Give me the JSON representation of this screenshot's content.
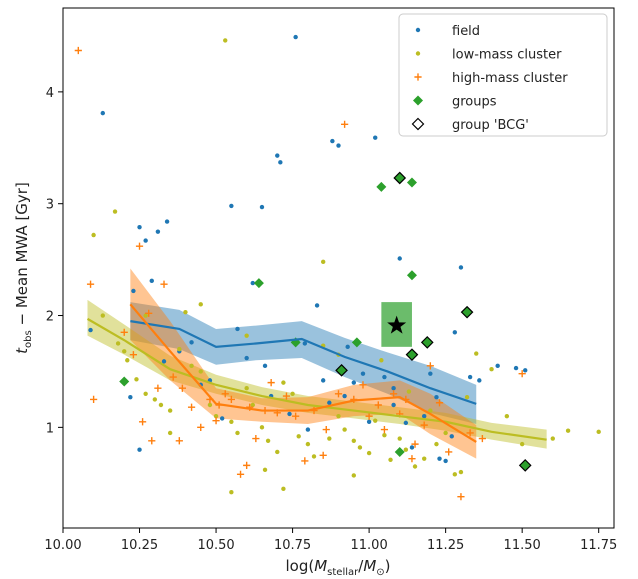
{
  "chart_data": {
    "type": "scatter",
    "xlabel": "log(M_stellar/M_⊙)",
    "ylabel": "t_obs − Mean MWA [Gyr]",
    "xlim": [
      10.0,
      11.8
    ],
    "ylim": [
      0.1,
      4.75
    ],
    "x_ticks": [
      "10.00",
      "10.25",
      "10.50",
      "10.75",
      "11.00",
      "11.25",
      "11.50",
      "11.75"
    ],
    "x_tick_values": [
      10.0,
      10.25,
      10.5,
      10.75,
      11.0,
      11.25,
      11.5,
      11.75
    ],
    "y_ticks": [
      "1",
      "2",
      "3",
      "4"
    ],
    "y_tick_values": [
      1,
      2,
      3,
      4
    ],
    "grid": false,
    "legend_position": "top-right",
    "legend": [
      {
        "label": "field",
        "marker": "dot",
        "color": "#1f77b4"
      },
      {
        "label": "low-mass cluster",
        "marker": "dot",
        "color": "#bcbd22"
      },
      {
        "label": "high-mass cluster",
        "marker": "plus",
        "color": "#ff7f0e"
      },
      {
        "label": "groups",
        "marker": "diamond",
        "color": "#2ca02c"
      },
      {
        "label": "group 'BCG'",
        "marker": "diamond-open",
        "color": "#000000"
      }
    ],
    "series": [
      {
        "name": "field",
        "color": "#1f77b4",
        "marker": "dot",
        "points": [
          [
            10.09,
            1.87
          ],
          [
            10.13,
            3.81
          ],
          [
            10.23,
            2.22
          ],
          [
            10.25,
            2.79
          ],
          [
            10.27,
            2.67
          ],
          [
            10.29,
            2.31
          ],
          [
            10.31,
            2.75
          ],
          [
            10.34,
            2.84
          ],
          [
            10.22,
            1.27
          ],
          [
            10.25,
            0.8
          ],
          [
            10.33,
            1.59
          ],
          [
            10.45,
            1.38
          ],
          [
            10.48,
            1.42
          ],
          [
            10.52,
            1.08
          ],
          [
            10.55,
            2.98
          ],
          [
            10.65,
            2.97
          ],
          [
            10.62,
            2.29
          ],
          [
            10.7,
            3.43
          ],
          [
            10.71,
            3.37
          ],
          [
            10.76,
            4.49
          ],
          [
            10.79,
            1.75
          ],
          [
            10.83,
            2.09
          ],
          [
            10.85,
            1.42
          ],
          [
            10.88,
            3.56
          ],
          [
            10.9,
            3.52
          ],
          [
            10.93,
            1.72
          ],
          [
            10.95,
            1.4
          ],
          [
            10.98,
            1.48
          ],
          [
            11.02,
            3.59
          ],
          [
            11.05,
            1.45
          ],
          [
            11.08,
            1.35
          ],
          [
            11.1,
            2.51
          ],
          [
            11.12,
            1.04
          ],
          [
            11.15,
            1.65
          ],
          [
            11.18,
            1.1
          ],
          [
            11.2,
            1.48
          ],
          [
            11.23,
            0.72
          ],
          [
            11.25,
            0.7
          ],
          [
            11.28,
            1.85
          ],
          [
            11.3,
            2.43
          ],
          [
            11.33,
            1.45
          ],
          [
            11.36,
            1.42
          ],
          [
            11.42,
            1.55
          ],
          [
            11.48,
            1.53
          ],
          [
            11.51,
            1.51
          ],
          [
            10.6,
            1.62
          ],
          [
            10.68,
            1.28
          ],
          [
            10.74,
            1.12
          ],
          [
            10.8,
            0.98
          ],
          [
            10.87,
            1.22
          ],
          [
            11.0,
            1.05
          ],
          [
            11.08,
            1.2
          ],
          [
            11.14,
            0.82
          ],
          [
            11.22,
            1.27
          ],
          [
            10.42,
            1.76
          ],
          [
            10.38,
            1.68
          ],
          [
            10.57,
            1.88
          ],
          [
            10.66,
            1.55
          ],
          [
            10.92,
            1.28
          ],
          [
            11.27,
            0.92
          ]
        ]
      },
      {
        "name": "low-mass cluster",
        "color": "#bcbd22",
        "marker": "dot",
        "points": [
          [
            10.1,
            2.72
          ],
          [
            10.17,
            2.93
          ],
          [
            10.13,
            2.0
          ],
          [
            10.18,
            1.75
          ],
          [
            10.2,
            1.68
          ],
          [
            10.21,
            1.6
          ],
          [
            10.24,
            1.43
          ],
          [
            10.27,
            1.3
          ],
          [
            10.3,
            1.25
          ],
          [
            10.32,
            1.2
          ],
          [
            10.35,
            1.15
          ],
          [
            10.38,
            1.7
          ],
          [
            10.4,
            2.03
          ],
          [
            10.42,
            1.55
          ],
          [
            10.45,
            1.5
          ],
          [
            10.48,
            1.2
          ],
          [
            10.5,
            1.1
          ],
          [
            10.53,
            4.46
          ],
          [
            10.55,
            1.05
          ],
          [
            10.57,
            0.95
          ],
          [
            10.6,
            1.35
          ],
          [
            10.62,
            1.2
          ],
          [
            10.65,
            1.0
          ],
          [
            10.67,
            0.88
          ],
          [
            10.7,
            0.78
          ],
          [
            10.72,
            1.4
          ],
          [
            10.75,
            1.3
          ],
          [
            10.77,
            0.92
          ],
          [
            10.8,
            0.85
          ],
          [
            10.82,
            0.74
          ],
          [
            10.85,
            2.48
          ],
          [
            10.87,
            0.9
          ],
          [
            10.9,
            1.1
          ],
          [
            10.92,
            0.98
          ],
          [
            10.95,
            0.88
          ],
          [
            10.97,
            0.82
          ],
          [
            11.0,
            0.77
          ],
          [
            11.02,
            1.06
          ],
          [
            11.05,
            0.93
          ],
          [
            11.07,
            0.71
          ],
          [
            11.1,
            0.9
          ],
          [
            11.12,
            0.8
          ],
          [
            11.15,
            0.65
          ],
          [
            11.18,
            0.72
          ],
          [
            11.2,
            1.15
          ],
          [
            11.22,
            0.85
          ],
          [
            11.25,
            0.95
          ],
          [
            11.28,
            0.58
          ],
          [
            11.3,
            0.6
          ],
          [
            11.35,
            1.66
          ],
          [
            11.4,
            1.52
          ],
          [
            11.45,
            1.1
          ],
          [
            11.5,
            0.85
          ],
          [
            11.6,
            0.9
          ],
          [
            11.65,
            0.97
          ],
          [
            11.75,
            0.96
          ],
          [
            10.55,
            0.42
          ],
          [
            10.72,
            0.45
          ],
          [
            10.45,
            2.1
          ],
          [
            10.6,
            1.82
          ],
          [
            10.85,
            1.73
          ],
          [
            11.04,
            1.6
          ],
          [
            11.32,
            1.27
          ],
          [
            10.35,
            0.95
          ],
          [
            10.27,
            2.0
          ],
          [
            10.9,
            1.65
          ],
          [
            11.13,
            1.32
          ],
          [
            10.66,
            0.62
          ],
          [
            10.95,
            0.57
          ]
        ]
      },
      {
        "name": "high-mass cluster",
        "color": "#ff7f0e",
        "marker": "plus",
        "points": [
          [
            10.05,
            4.37
          ],
          [
            10.1,
            1.25
          ],
          [
            10.09,
            2.28
          ],
          [
            10.25,
            2.62
          ],
          [
            10.28,
            2.02
          ],
          [
            10.2,
            1.85
          ],
          [
            10.23,
            1.65
          ],
          [
            10.26,
            1.05
          ],
          [
            10.29,
            0.88
          ],
          [
            10.31,
            1.35
          ],
          [
            10.33,
            2.28
          ],
          [
            10.36,
            1.45
          ],
          [
            10.39,
            1.35
          ],
          [
            10.42,
            1.18
          ],
          [
            10.45,
            1.0
          ],
          [
            10.48,
            1.25
          ],
          [
            10.51,
            1.2
          ],
          [
            10.53,
            1.3
          ],
          [
            10.55,
            1.25
          ],
          [
            10.58,
            0.58
          ],
          [
            10.61,
            1.18
          ],
          [
            10.63,
            0.9
          ],
          [
            10.66,
            1.15
          ],
          [
            10.7,
            1.13
          ],
          [
            10.73,
            1.28
          ],
          [
            10.76,
            1.1
          ],
          [
            10.79,
            0.7
          ],
          [
            10.82,
            1.15
          ],
          [
            10.86,
            0.98
          ],
          [
            10.9,
            1.3
          ],
          [
            10.92,
            3.71
          ],
          [
            10.95,
            1.25
          ],
          [
            10.98,
            1.38
          ],
          [
            11.0,
            1.1
          ],
          [
            11.03,
            1.2
          ],
          [
            11.05,
            0.98
          ],
          [
            11.08,
            1.3
          ],
          [
            11.1,
            1.12
          ],
          [
            11.12,
            1.25
          ],
          [
            11.15,
            0.85
          ],
          [
            11.18,
            1.02
          ],
          [
            11.2,
            1.55
          ],
          [
            11.23,
            1.22
          ],
          [
            11.26,
            0.78
          ],
          [
            11.3,
            0.38
          ],
          [
            11.33,
            0.95
          ],
          [
            11.37,
            0.9
          ],
          [
            11.5,
            1.48
          ],
          [
            10.68,
            1.4
          ],
          [
            10.6,
            0.66
          ],
          [
            10.85,
            0.75
          ],
          [
            11.14,
            0.72
          ],
          [
            10.38,
            0.88
          ],
          [
            10.5,
            1.06
          ]
        ]
      },
      {
        "name": "groups",
        "color": "#2ca02c",
        "marker": "diamond",
        "points": [
          [
            10.2,
            1.41
          ],
          [
            10.64,
            2.29
          ],
          [
            10.76,
            1.76
          ],
          [
            10.96,
            1.76
          ],
          [
            11.04,
            3.15
          ],
          [
            11.14,
            3.19
          ],
          [
            11.14,
            2.36
          ],
          [
            11.1,
            0.78
          ]
        ]
      },
      {
        "name": "group 'BCG'",
        "color": "#2ca02c",
        "marker": "diamond-open",
        "points": [
          [
            10.91,
            1.51
          ],
          [
            11.1,
            3.23
          ],
          [
            11.14,
            1.65
          ],
          [
            11.19,
            1.76
          ],
          [
            11.32,
            2.03
          ],
          [
            11.51,
            0.66
          ]
        ]
      }
    ],
    "trends": [
      {
        "name": "field",
        "color": "#1f77b4",
        "x": [
          10.22,
          10.38,
          10.5,
          10.63,
          10.78,
          10.92,
          11.06,
          11.2,
          11.35
        ],
        "y": [
          1.95,
          1.88,
          1.72,
          1.75,
          1.79,
          1.63,
          1.5,
          1.35,
          1.21
        ],
        "y_low": [
          1.78,
          1.7,
          1.56,
          1.6,
          1.62,
          1.45,
          1.3,
          1.13,
          1.03
        ],
        "y_high": [
          2.12,
          2.05,
          1.88,
          1.91,
          1.95,
          1.8,
          1.67,
          1.55,
          1.38
        ]
      },
      {
        "name": "low-mass cluster",
        "color": "#bcbd22",
        "x": [
          10.08,
          10.2,
          10.35,
          10.5,
          10.65,
          10.8,
          10.95,
          11.1,
          11.25,
          11.4,
          11.58
        ],
        "y": [
          1.97,
          1.78,
          1.52,
          1.38,
          1.28,
          1.2,
          1.15,
          1.1,
          1.05,
          0.96,
          0.89
        ],
        "y_low": [
          1.82,
          1.65,
          1.42,
          1.3,
          1.2,
          1.13,
          1.08,
          1.03,
          0.97,
          0.89,
          0.81
        ],
        "y_high": [
          2.14,
          1.92,
          1.64,
          1.47,
          1.36,
          1.28,
          1.23,
          1.18,
          1.13,
          1.04,
          0.98
        ]
      },
      {
        "name": "high-mass cluster",
        "color": "#ff7f0e",
        "x": [
          10.22,
          10.35,
          10.5,
          10.65,
          10.8,
          10.95,
          11.1,
          11.2,
          11.35
        ],
        "y": [
          2.1,
          1.68,
          1.21,
          1.15,
          1.15,
          1.24,
          1.27,
          1.12,
          0.87
        ],
        "y_low": [
          1.78,
          1.42,
          1.08,
          1.05,
          1.03,
          1.1,
          1.12,
          0.94,
          0.72
        ],
        "y_high": [
          2.42,
          1.95,
          1.35,
          1.26,
          1.27,
          1.38,
          1.42,
          1.3,
          1.02
        ]
      }
    ],
    "highlight": {
      "marker": "star",
      "color": "#000000",
      "x": 11.09,
      "y": 1.91,
      "box_x": [
        11.04,
        11.14
      ],
      "box_y": [
        1.72,
        2.12
      ],
      "box_color": "#2ca02c"
    }
  }
}
